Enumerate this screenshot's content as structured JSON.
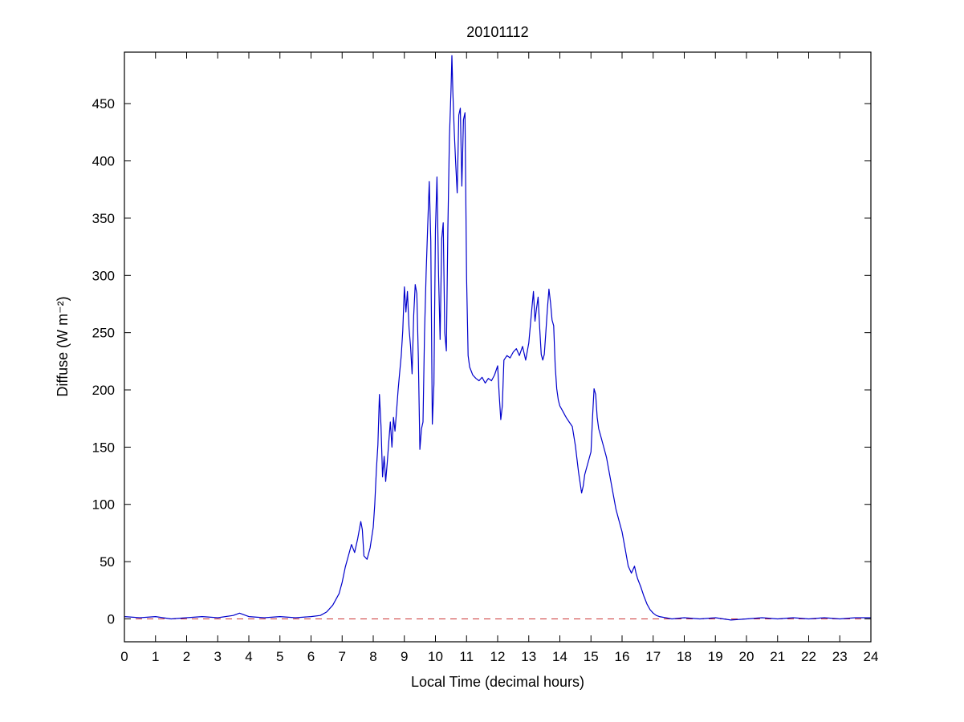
{
  "figure": {
    "background": "#ffffff"
  },
  "chart_data": {
    "type": "line",
    "title": "20101112",
    "xlabel": "Local Time (decimal hours)",
    "ylabel": "Diffuse (W m⁻²)",
    "xlim": [
      0,
      24
    ],
    "ylim": [
      -20,
      495
    ],
    "xticks": [
      0,
      1,
      2,
      3,
      4,
      5,
      6,
      7,
      8,
      9,
      10,
      11,
      12,
      13,
      14,
      15,
      16,
      17,
      18,
      19,
      20,
      21,
      22,
      23,
      24
    ],
    "yticks": [
      0,
      50,
      100,
      150,
      200,
      250,
      300,
      350,
      400,
      450
    ],
    "grid": false,
    "legend": "none",
    "axis_color": "#000000",
    "series": [
      {
        "name": "diffuse-irradiance",
        "color": "#0000CC",
        "style": "solid",
        "x": [
          0,
          0.5,
          1,
          1.5,
          2,
          2.5,
          3,
          3.5,
          3.7,
          4,
          4.5,
          5,
          5.5,
          6,
          6.3,
          6.5,
          6.7,
          6.9,
          7.0,
          7.1,
          7.2,
          7.3,
          7.4,
          7.5,
          7.6,
          7.65,
          7.7,
          7.8,
          7.9,
          8.0,
          8.05,
          8.1,
          8.15,
          8.2,
          8.25,
          8.3,
          8.35,
          8.4,
          8.45,
          8.5,
          8.55,
          8.6,
          8.65,
          8.7,
          8.75,
          8.8,
          8.85,
          8.9,
          8.95,
          9.0,
          9.05,
          9.1,
          9.15,
          9.2,
          9.25,
          9.3,
          9.35,
          9.4,
          9.45,
          9.5,
          9.55,
          9.6,
          9.65,
          9.7,
          9.75,
          9.8,
          9.85,
          9.9,
          9.95,
          10.0,
          10.05,
          10.1,
          10.15,
          10.2,
          10.25,
          10.3,
          10.35,
          10.4,
          10.45,
          10.5,
          10.53,
          10.56,
          10.6,
          10.65,
          10.7,
          10.75,
          10.8,
          10.85,
          10.9,
          10.95,
          11.0,
          11.05,
          11.1,
          11.2,
          11.3,
          11.4,
          11.5,
          11.6,
          11.7,
          11.8,
          11.9,
          12.0,
          12.05,
          12.1,
          12.15,
          12.2,
          12.3,
          12.4,
          12.5,
          12.6,
          12.7,
          12.8,
          12.9,
          13.0,
          13.05,
          13.1,
          13.15,
          13.2,
          13.25,
          13.3,
          13.35,
          13.4,
          13.45,
          13.5,
          13.55,
          13.6,
          13.65,
          13.7,
          13.75,
          13.8,
          13.85,
          13.9,
          13.95,
          14.0,
          14.1,
          14.2,
          14.3,
          14.4,
          14.5,
          14.6,
          14.7,
          14.75,
          14.8,
          14.9,
          15.0,
          15.05,
          15.1,
          15.15,
          15.2,
          15.25,
          15.3,
          15.4,
          15.5,
          15.6,
          15.7,
          15.8,
          15.9,
          16.0,
          16.1,
          16.2,
          16.3,
          16.35,
          16.4,
          16.45,
          16.5,
          16.6,
          16.7,
          16.8,
          16.9,
          17.0,
          17.1,
          17.2,
          17.4,
          17.6,
          18.0,
          18.5,
          19.0,
          19.5,
          20.0,
          20.5,
          21.0,
          21.5,
          22.0,
          22.5,
          23.0,
          23.5,
          24.0
        ],
        "y": [
          2,
          1,
          2,
          0,
          1,
          2,
          1,
          3,
          5,
          2,
          1,
          2,
          1,
          2,
          3,
          6,
          12,
          22,
          32,
          45,
          55,
          65,
          58,
          70,
          85,
          78,
          55,
          52,
          62,
          80,
          100,
          130,
          152,
          196,
          168,
          124,
          142,
          120,
          136,
          155,
          172,
          150,
          176,
          164,
          182,
          200,
          215,
          230,
          252,
          290,
          268,
          286,
          254,
          238,
          214,
          265,
          292,
          284,
          228,
          148,
          166,
          172,
          250,
          302,
          342,
          382,
          330,
          170,
          205,
          340,
          386,
          300,
          244,
          332,
          346,
          250,
          234,
          342,
          420,
          462,
          492,
          460,
          428,
          398,
          372,
          440,
          446,
          378,
          436,
          442,
          298,
          230,
          220,
          213,
          210,
          208,
          211,
          206,
          210,
          208,
          213,
          221,
          196,
          174,
          186,
          226,
          230,
          228,
          233,
          236,
          230,
          238,
          226,
          241,
          256,
          271,
          286,
          260,
          271,
          281,
          255,
          231,
          226,
          231,
          251,
          271,
          288,
          276,
          261,
          256,
          221,
          201,
          191,
          186,
          181,
          176,
          172,
          168,
          151,
          128,
          110,
          116,
          126,
          136,
          146,
          176,
          201,
          196,
          176,
          166,
          161,
          151,
          141,
          126,
          111,
          96,
          86,
          76,
          61,
          46,
          40,
          43,
          46,
          40,
          35,
          28,
          20,
          13,
          8,
          5,
          3,
          2,
          1,
          0,
          1,
          0,
          1,
          -1,
          0,
          1,
          0,
          1,
          0,
          1,
          0,
          1,
          1
        ]
      },
      {
        "name": "zero-reference-line",
        "color": "#CC3333",
        "style": "dashed",
        "value": 0
      }
    ]
  }
}
